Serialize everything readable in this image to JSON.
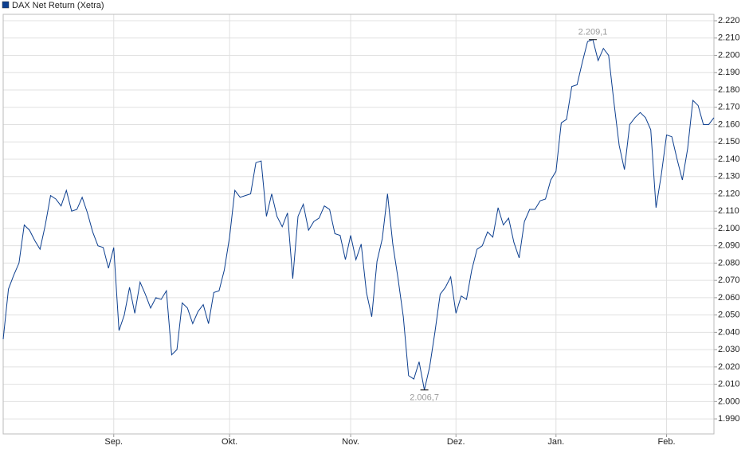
{
  "chart_data": {
    "type": "line",
    "series": [
      {
        "name": "DAX Net Return (Xetra)",
        "color": "#0d3f8f",
        "values": [
          2036,
          2065,
          2073,
          2080,
          2102,
          2099,
          2093,
          2088,
          2102,
          2119,
          2117,
          2113,
          2122,
          2110,
          2111,
          2118,
          2109,
          2098,
          2090,
          2089,
          2077,
          2089,
          2041,
          2050,
          2066,
          2051,
          2069,
          2062,
          2054,
          2060,
          2059,
          2064,
          2027,
          2030,
          2057,
          2054,
          2045,
          2052,
          2056,
          2045,
          2063,
          2064,
          2076,
          2095,
          2122,
          2118,
          2119,
          2120,
          2138,
          2139,
          2107,
          2120,
          2107,
          2101,
          2109,
          2071,
          2107,
          2114,
          2099,
          2104,
          2106,
          2113,
          2111,
          2097,
          2096,
          2082,
          2096,
          2082,
          2091,
          2063,
          2049,
          2081,
          2094,
          2120,
          2091,
          2071,
          2049,
          2015,
          2013,
          2023,
          2006.7,
          2020,
          2040,
          2062,
          2066,
          2072,
          2051,
          2061,
          2059,
          2076,
          2088,
          2090,
          2098,
          2095,
          2112,
          2102,
          2106,
          2092,
          2083,
          2104,
          2111,
          2111,
          2116,
          2117,
          2128,
          2133,
          2161,
          2163,
          2182,
          2183,
          2196,
          2208,
          2209.1,
          2197,
          2204,
          2200,
          2173,
          2148,
          2134,
          2160,
          2164,
          2167,
          2164,
          2157,
          2112,
          2131,
          2154,
          2153,
          2140,
          2128,
          2146,
          2174,
          2171,
          2160,
          2160,
          2164
        ]
      }
    ],
    "xlim": [
      0,
      135
    ],
    "xticks": [
      {
        "value": 21,
        "label": "Sep."
      },
      {
        "value": 43,
        "label": "Okt."
      },
      {
        "value": 66,
        "label": "Nov."
      },
      {
        "value": 86,
        "label": "Dez."
      },
      {
        "value": 105,
        "label": "Jan."
      },
      {
        "value": 126,
        "label": "Feb."
      }
    ],
    "ylim": [
      1981.3,
      2223.7
    ],
    "yticks": [
      {
        "value": 1990,
        "label": "1.990"
      },
      {
        "value": 2000,
        "label": "2.000"
      },
      {
        "value": 2010,
        "label": "2.010"
      },
      {
        "value": 2020,
        "label": "2.020"
      },
      {
        "value": 2030,
        "label": "2.030"
      },
      {
        "value": 2040,
        "label": "2.040"
      },
      {
        "value": 2050,
        "label": "2.050"
      },
      {
        "value": 2060,
        "label": "2.060"
      },
      {
        "value": 2070,
        "label": "2.070"
      },
      {
        "value": 2080,
        "label": "2.080"
      },
      {
        "value": 2090,
        "label": "2.090"
      },
      {
        "value": 2100,
        "label": "2.100"
      },
      {
        "value": 2110,
        "label": "2.110"
      },
      {
        "value": 2120,
        "label": "2.120"
      },
      {
        "value": 2130,
        "label": "2.130"
      },
      {
        "value": 2140,
        "label": "2.140"
      },
      {
        "value": 2150,
        "label": "2.150"
      },
      {
        "value": 2160,
        "label": "2.160"
      },
      {
        "value": 2170,
        "label": "2.170"
      },
      {
        "value": 2180,
        "label": "2.180"
      },
      {
        "value": 2190,
        "label": "2.190"
      },
      {
        "value": 2200,
        "label": "2.200"
      },
      {
        "value": 2210,
        "label": "2.210"
      },
      {
        "value": 2220,
        "label": "2.220"
      }
    ],
    "annotations": [
      {
        "x": 112,
        "text": "2.209,1"
      },
      {
        "x": 80,
        "text": "2.006,7"
      }
    ],
    "grid": true,
    "legend": "top-left"
  }
}
